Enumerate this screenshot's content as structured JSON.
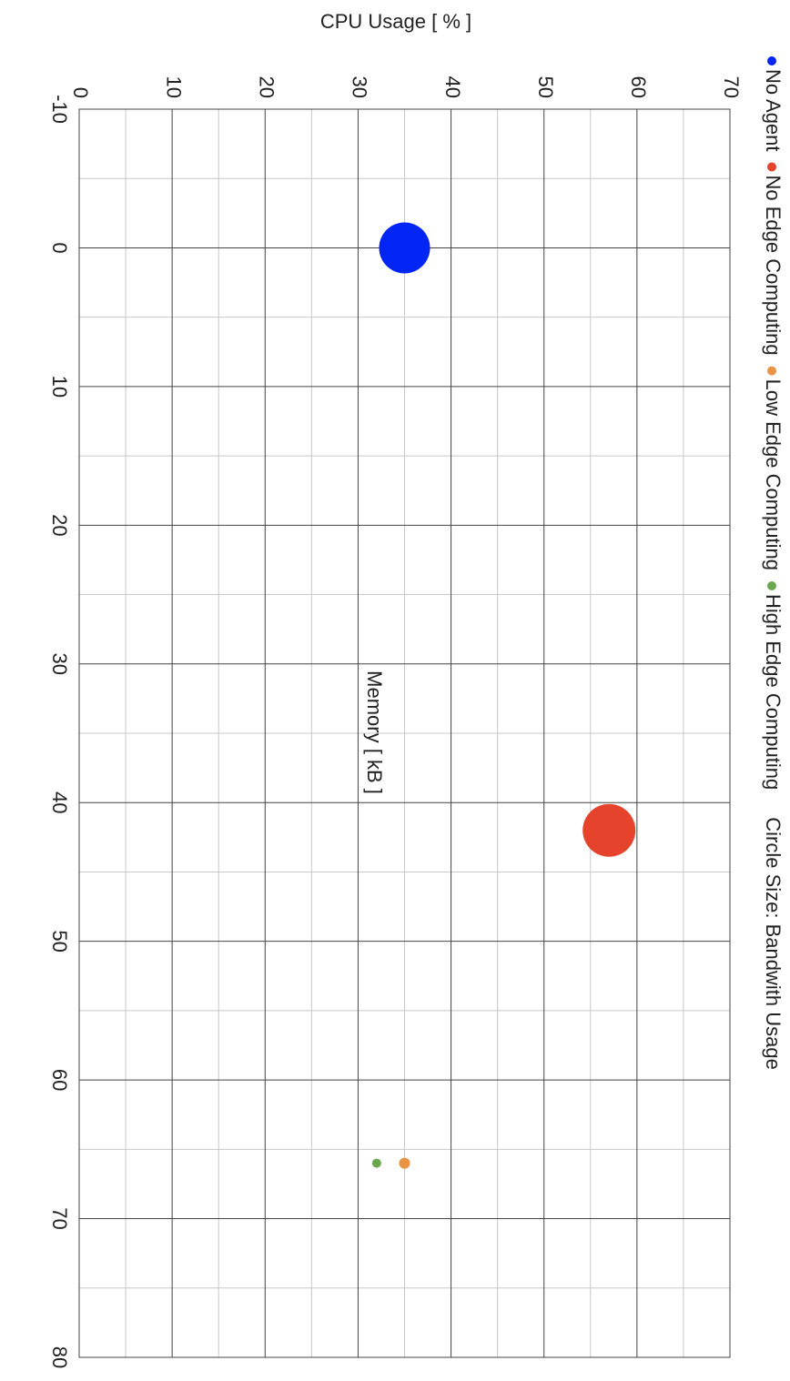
{
  "chart_data": {
    "type": "bubble",
    "title": "CPU Usage [ % ]",
    "x_label": "Memory [ kB ]",
    "size_label": "Circle Size: Bandwith Usage",
    "series": [
      {
        "name": "No Agent",
        "color": "#0025f5",
        "x": [
          0
        ],
        "values": [
          35
        ],
        "sizes": [
          28
        ]
      },
      {
        "name": "No Edge Computing",
        "color": "#e5432b",
        "x": [
          42
        ],
        "values": [
          57
        ],
        "sizes": [
          29
        ]
      },
      {
        "name": "Low Edge Computing",
        "color": "#ea9344",
        "x": [
          66
        ],
        "values": [
          35
        ],
        "sizes": [
          6
        ]
      },
      {
        "name": "High Edge Computing",
        "color": "#6aa84f",
        "x": [
          66
        ],
        "values": [
          32
        ],
        "sizes": [
          5
        ]
      }
    ],
    "xlim": [
      -10,
      80
    ],
    "xticks": [
      -10,
      0,
      10,
      20,
      30,
      40,
      50,
      60,
      70,
      80
    ],
    "ylim": [
      0,
      70
    ],
    "yticks": [
      0,
      10,
      20,
      30,
      40,
      50,
      60,
      70
    ],
    "grid": true,
    "legend": "right"
  }
}
